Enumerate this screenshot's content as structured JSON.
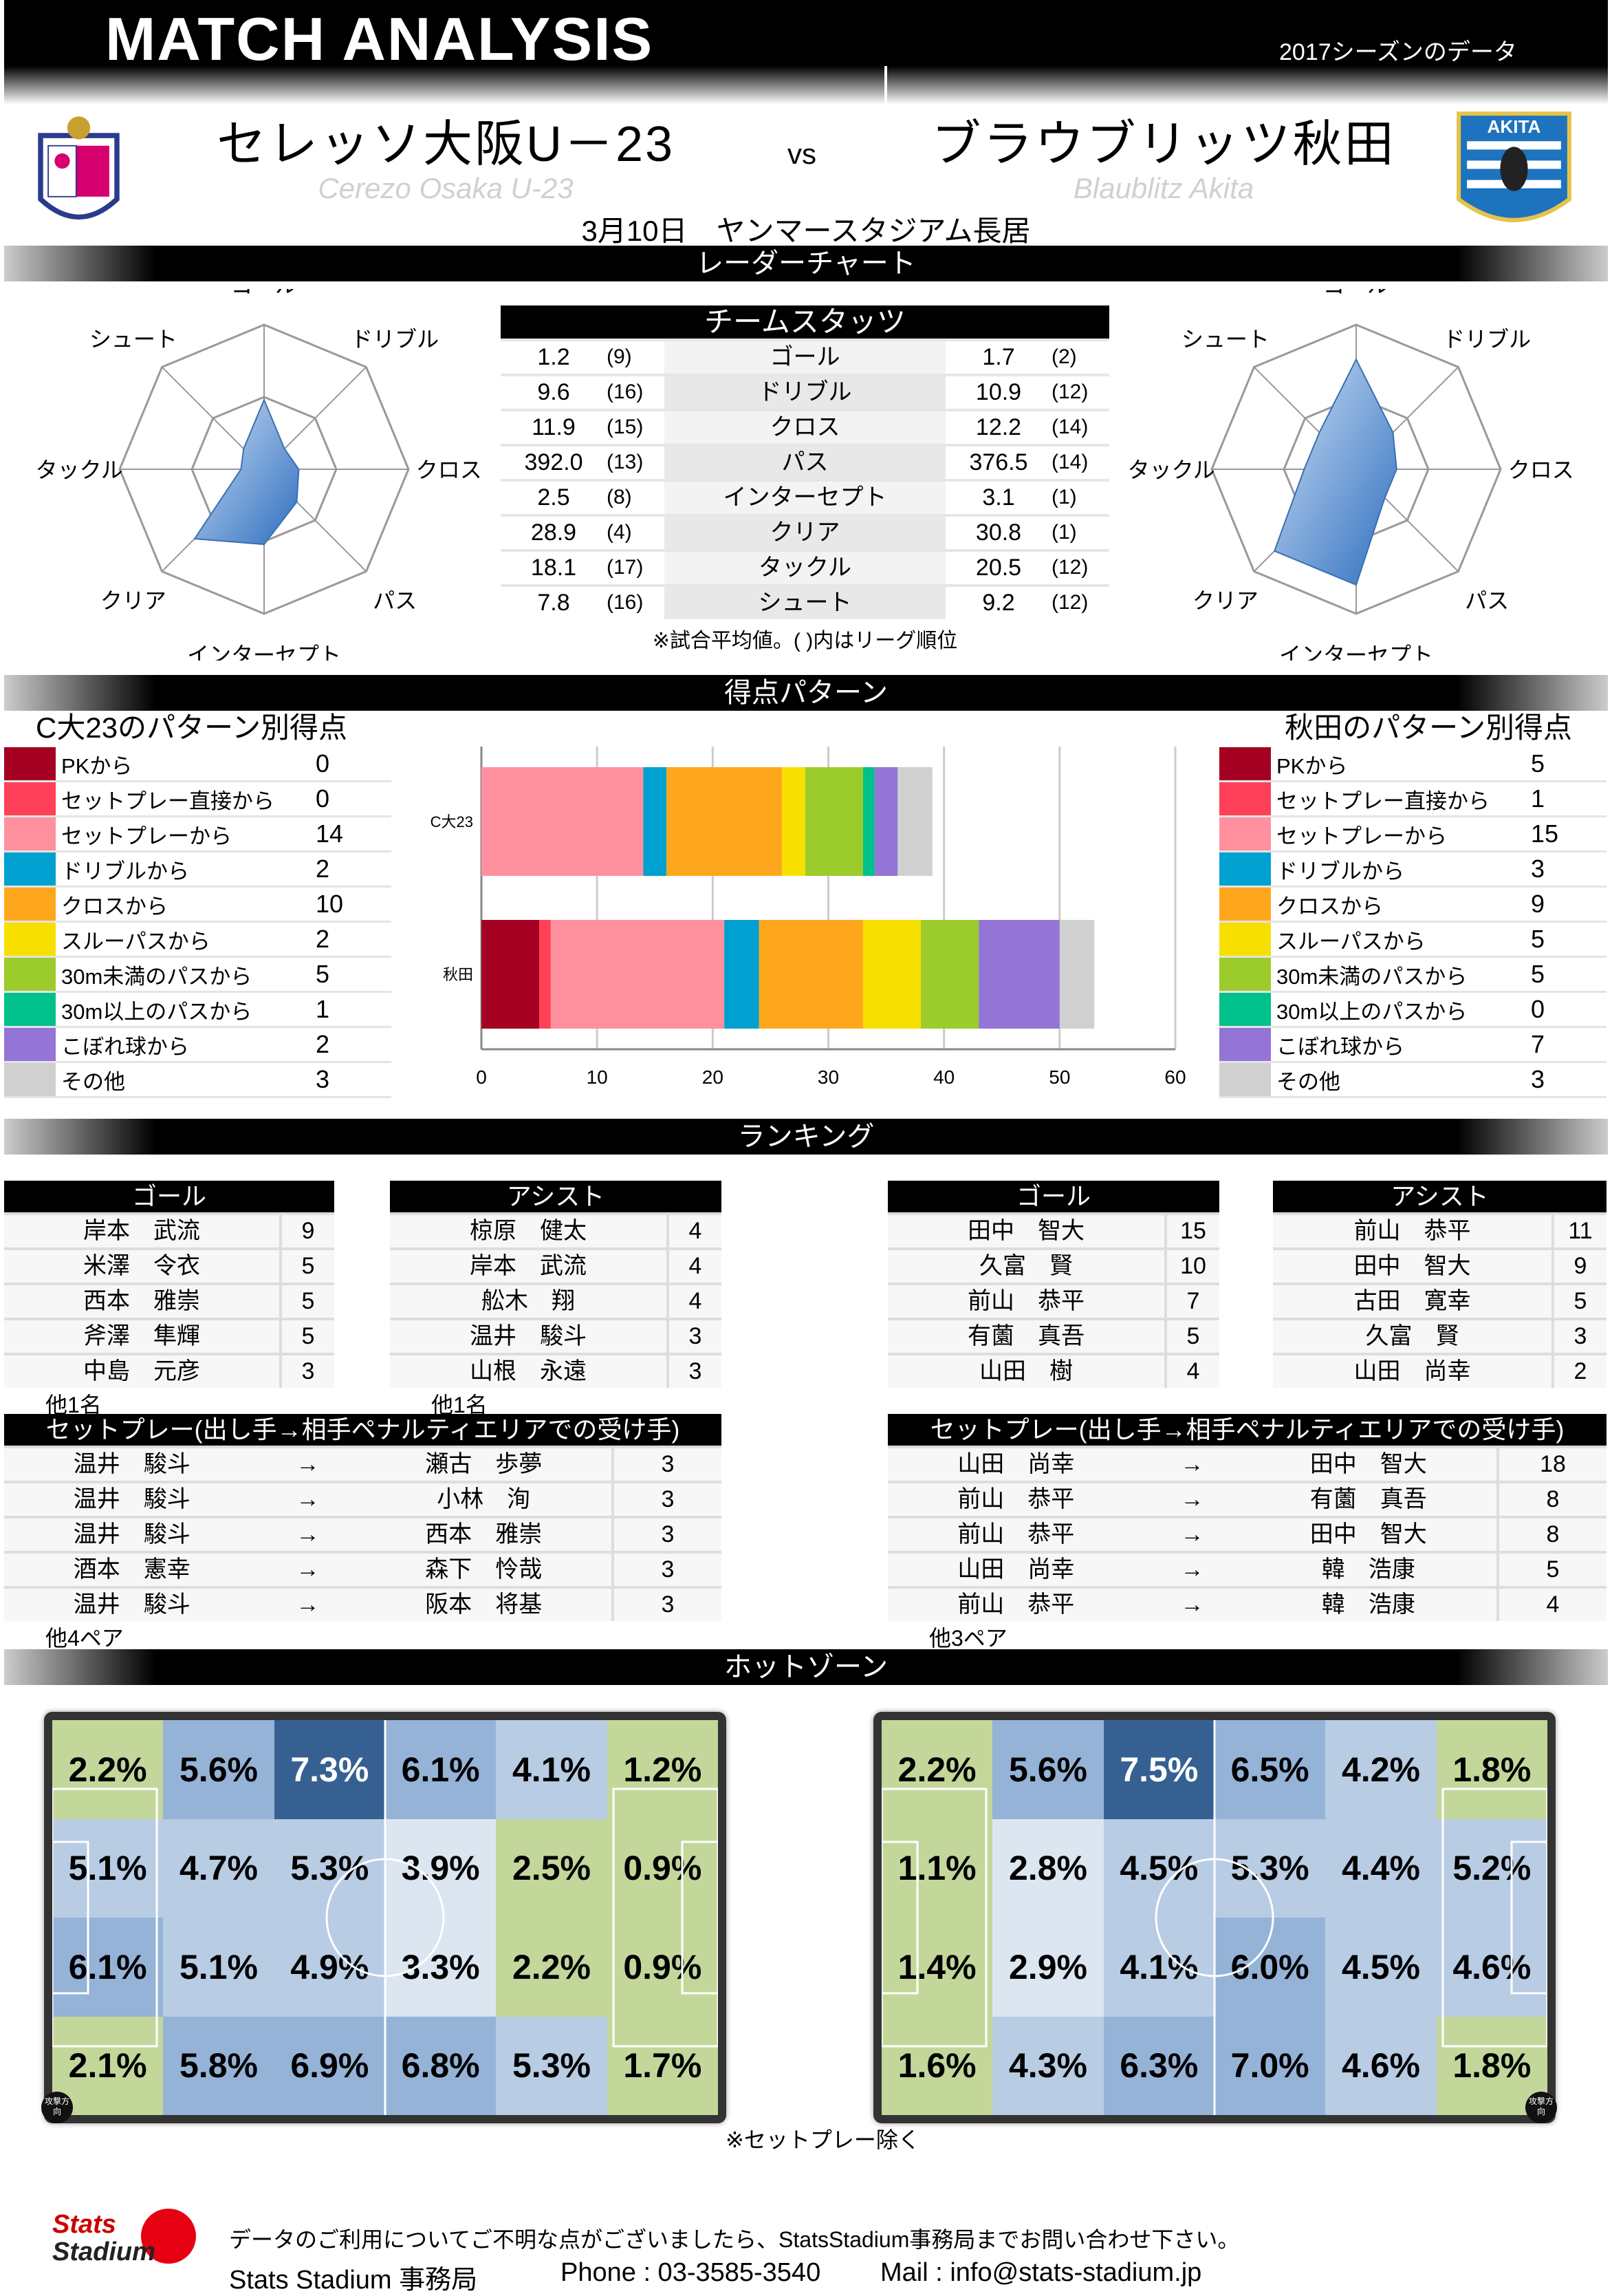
{
  "header": {
    "title": "MATCH ANALYSIS",
    "season": "2017シーズンのデータ",
    "vs": "vs",
    "date_venue": "3月10日　ヤンマースタジアム長居"
  },
  "home": {
    "name": "セレッソ大阪U－23",
    "name_en": "Cerezo Osaka U-23",
    "short": "C大23",
    "pattern_title": "C大23のパターン別得点",
    "color": "#d6006f"
  },
  "away": {
    "name": "ブラウブリッツ秋田",
    "name_en": "Blaublitz Akita",
    "short": "秋田",
    "pattern_title": "秋田のパターン別得点",
    "color": "#1e73be",
    "logo_text": "AKITA"
  },
  "sections": {
    "radar": "レーダーチャート",
    "scoring": "得点パターン",
    "ranking": "ランキング",
    "hotzone": "ホットゾーン"
  },
  "team_stats": {
    "title": "チームスタッツ",
    "note": "※試合平均値。( )内はリーグ順位",
    "rows": [
      {
        "label": "ゴール",
        "home": "1.2",
        "home_rank": "(9)",
        "away": "1.7",
        "away_rank": "(2)"
      },
      {
        "label": "ドリブル",
        "home": "9.6",
        "home_rank": "(16)",
        "away": "10.9",
        "away_rank": "(12)"
      },
      {
        "label": "クロス",
        "home": "11.9",
        "home_rank": "(15)",
        "away": "12.2",
        "away_rank": "(14)"
      },
      {
        "label": "パス",
        "home": "392.0",
        "home_rank": "(13)",
        "away": "376.5",
        "away_rank": "(14)"
      },
      {
        "label": "インターセプト",
        "home": "2.5",
        "home_rank": "(8)",
        "away": "3.1",
        "away_rank": "(1)"
      },
      {
        "label": "クリア",
        "home": "28.9",
        "home_rank": "(4)",
        "away": "30.8",
        "away_rank": "(1)"
      },
      {
        "label": "タックル",
        "home": "18.1",
        "home_rank": "(17)",
        "away": "20.5",
        "away_rank": "(12)"
      },
      {
        "label": "シュート",
        "home": "7.8",
        "home_rank": "(16)",
        "away": "9.2",
        "away_rank": "(12)"
      }
    ]
  },
  "radar": {
    "axes": [
      "ゴール",
      "ドリブル",
      "クロス",
      "パス",
      "インターセプト",
      "クリア",
      "タックル",
      "シュート"
    ],
    "home_ranks": [
      9,
      16,
      15,
      13,
      8,
      4,
      17,
      16
    ],
    "away_ranks": [
      2,
      12,
      14,
      14,
      1,
      1,
      12,
      12
    ]
  },
  "chart_data": {
    "type": "bar",
    "orientation": "horizontal",
    "stacked": true,
    "categories": [
      "C大23",
      "秋田"
    ],
    "xlim": [
      0,
      60
    ],
    "xticks": [
      "0",
      "10",
      "20",
      "30",
      "40",
      "50",
      "60"
    ],
    "series": [
      {
        "name": "PKから",
        "color": "#a50021",
        "values": [
          0,
          5
        ]
      },
      {
        "name": "セットプレー直接から",
        "color": "#ff4058",
        "values": [
          0,
          1
        ]
      },
      {
        "name": "セットプレーから",
        "color": "#ff909e",
        "values": [
          14,
          15
        ]
      },
      {
        "name": "ドリブルから",
        "color": "#00a0d0",
        "values": [
          2,
          3
        ]
      },
      {
        "name": "クロスから",
        "color": "#ffa71c",
        "values": [
          10,
          9
        ]
      },
      {
        "name": "スルーパスから",
        "color": "#f7e000",
        "values": [
          2,
          5
        ]
      },
      {
        "name": "30m未満のパスから",
        "color": "#9ccc2c",
        "values": [
          5,
          5
        ]
      },
      {
        "name": "30m以上のパスから",
        "color": "#00c08c",
        "values": [
          1,
          0
        ]
      },
      {
        "name": "こぼれ球から",
        "color": "#9474d6",
        "values": [
          2,
          7
        ]
      },
      {
        "name": "その他",
        "color": "#d0d0d0",
        "values": [
          3,
          3
        ]
      }
    ]
  },
  "ranking": {
    "goal_label": "ゴール",
    "assist_label": "アシスト",
    "setplay_label": "セットプレー(出し手→相手ペナルティエリアでの受け手)",
    "arrow": "→",
    "home": {
      "goals": [
        [
          "岸本　武流",
          "9"
        ],
        [
          "米澤　令衣",
          "5"
        ],
        [
          "西本　雅崇",
          "5"
        ],
        [
          "斧澤　隼輝",
          "5"
        ],
        [
          "中島　元彦",
          "3"
        ]
      ],
      "goals_more": "他1名",
      "assists": [
        [
          "椋原　健太",
          "4"
        ],
        [
          "岸本　武流",
          "4"
        ],
        [
          "舩木　翔",
          "4"
        ],
        [
          "温井　駿斗",
          "3"
        ],
        [
          "山根　永遠",
          "3"
        ]
      ],
      "assists_more": "他1名",
      "setplays": [
        [
          "温井　駿斗",
          "瀬古　歩夢",
          "3"
        ],
        [
          "温井　駿斗",
          "小林　洵",
          "3"
        ],
        [
          "温井　駿斗",
          "西本　雅崇",
          "3"
        ],
        [
          "酒本　憲幸",
          "森下　怜哉",
          "3"
        ],
        [
          "温井　駿斗",
          "阪本　将基",
          "3"
        ]
      ],
      "setplays_more": "他4ペア"
    },
    "away": {
      "goals": [
        [
          "田中　智大",
          "15"
        ],
        [
          "久富　賢",
          "10"
        ],
        [
          "前山　恭平",
          "7"
        ],
        [
          "有薗　真吾",
          "5"
        ],
        [
          "山田　樹",
          "4"
        ]
      ],
      "assists": [
        [
          "前山　恭平",
          "11"
        ],
        [
          "田中　智大",
          "9"
        ],
        [
          "古田　寛幸",
          "5"
        ],
        [
          "久富　賢",
          "3"
        ],
        [
          "山田　尚幸",
          "2"
        ]
      ],
      "setplays": [
        [
          "山田　尚幸",
          "田中　智大",
          "18"
        ],
        [
          "前山　恭平",
          "有薗　真吾",
          "8"
        ],
        [
          "前山　恭平",
          "田中　智大",
          "8"
        ],
        [
          "山田　尚幸",
          "韓　浩康",
          "5"
        ],
        [
          "前山　恭平",
          "韓　浩康",
          "4"
        ]
      ],
      "setplays_more": "他3ペア"
    }
  },
  "hotzone": {
    "note": "※セットプレー除く",
    "direction_label": "攻撃方向",
    "home": [
      [
        "2.2%",
        "5.6%",
        "7.3%",
        "6.1%",
        "4.1%",
        "1.2%"
      ],
      [
        "5.1%",
        "4.7%",
        "5.3%",
        "3.9%",
        "2.5%",
        "0.9%"
      ],
      [
        "6.1%",
        "5.1%",
        "4.9%",
        "3.3%",
        "2.2%",
        "0.9%"
      ],
      [
        "2.1%",
        "5.8%",
        "6.9%",
        "6.8%",
        "5.3%",
        "1.7%"
      ]
    ],
    "away": [
      [
        "2.2%",
        "5.6%",
        "7.5%",
        "6.5%",
        "4.2%",
        "1.8%"
      ],
      [
        "1.1%",
        "2.8%",
        "4.5%",
        "5.3%",
        "4.4%",
        "5.2%"
      ],
      [
        "1.4%",
        "2.9%",
        "4.1%",
        "6.0%",
        "4.5%",
        "4.6%"
      ],
      [
        "1.6%",
        "4.3%",
        "6.3%",
        "7.0%",
        "4.6%",
        "1.8%"
      ]
    ]
  },
  "footer": {
    "logo": "Stats Stadium",
    "line1": "データのご利用についてご不明な点がございましたら、StatsStadium事務局までお問い合わせ下さい。",
    "office": "Stats Stadium 事務局",
    "phone": "Phone : 03-3585-3540",
    "mail": "Mail : info@stats-stadium.jp"
  }
}
